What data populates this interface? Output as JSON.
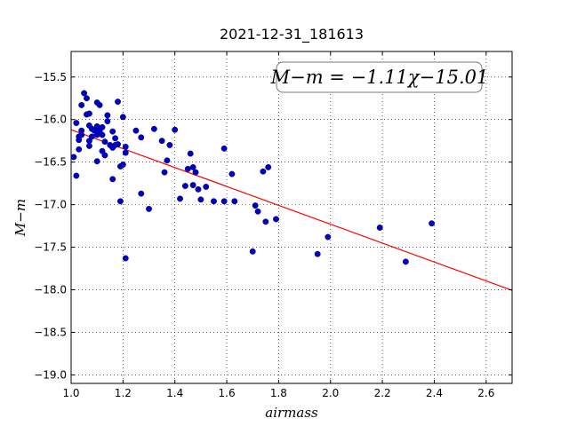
{
  "chart_data": {
    "type": "scatter",
    "title": "2021-12-31_181613",
    "xlabel": "airmass",
    "ylabel": "M−m",
    "xlim": [
      1.0,
      2.7
    ],
    "ylim": [
      -19.1,
      -15.2
    ],
    "xticks": [
      "1.0",
      "1.2",
      "1.4",
      "1.6",
      "1.8",
      "2.0",
      "2.2",
      "2.4",
      "2.6"
    ],
    "yticks": [
      "-15.5",
      "-16.0",
      "-16.5",
      "-17.0",
      "-17.5",
      "-18.0",
      "-18.5",
      "-19.0"
    ],
    "grid": true,
    "annotation": "M−m = −1.11χ−15.01",
    "fit": {
      "slope": -1.11,
      "intercept": -15.01,
      "x_range": [
        1.0,
        2.7
      ],
      "color": "#ff0000"
    },
    "series": [
      {
        "color": "#0000bf",
        "points": [
          [
            1.01,
            -16.44
          ],
          [
            1.02,
            -16.04
          ],
          [
            1.02,
            -16.66
          ],
          [
            1.03,
            -16.2
          ],
          [
            1.03,
            -16.24
          ],
          [
            1.03,
            -16.35
          ],
          [
            1.04,
            -16.13
          ],
          [
            1.04,
            -15.83
          ],
          [
            1.04,
            -16.18
          ],
          [
            1.05,
            -15.69
          ],
          [
            1.06,
            -15.75
          ],
          [
            1.06,
            -15.94
          ],
          [
            1.07,
            -15.93
          ],
          [
            1.07,
            -16.07
          ],
          [
            1.07,
            -16.31
          ],
          [
            1.07,
            -16.25
          ],
          [
            1.08,
            -16.11
          ],
          [
            1.08,
            -16.2
          ],
          [
            1.09,
            -16.13
          ],
          [
            1.1,
            -15.8
          ],
          [
            1.1,
            -16.08
          ],
          [
            1.1,
            -16.18
          ],
          [
            1.1,
            -16.49
          ],
          [
            1.11,
            -15.83
          ],
          [
            1.11,
            -16.13
          ],
          [
            1.12,
            -16.09
          ],
          [
            1.12,
            -16.37
          ],
          [
            1.12,
            -16.18
          ],
          [
            1.13,
            -16.42
          ],
          [
            1.13,
            -16.26
          ],
          [
            1.14,
            -15.95
          ],
          [
            1.14,
            -16.02
          ],
          [
            1.15,
            -16.3
          ],
          [
            1.16,
            -16.7
          ],
          [
            1.16,
            -16.14
          ],
          [
            1.16,
            -16.33
          ],
          [
            1.17,
            -16.22
          ],
          [
            1.17,
            -16.3
          ],
          [
            1.18,
            -15.79
          ],
          [
            1.18,
            -16.29
          ],
          [
            1.19,
            -16.55
          ],
          [
            1.19,
            -16.96
          ],
          [
            1.2,
            -16.53
          ],
          [
            1.2,
            -15.97
          ],
          [
            1.21,
            -16.32
          ],
          [
            1.21,
            -16.39
          ],
          [
            1.21,
            -17.63
          ],
          [
            1.25,
            -16.13
          ],
          [
            1.27,
            -16.87
          ],
          [
            1.27,
            -16.21
          ],
          [
            1.3,
            -17.05
          ],
          [
            1.32,
            -16.11
          ],
          [
            1.35,
            -16.25
          ],
          [
            1.36,
            -16.62
          ],
          [
            1.37,
            -16.48
          ],
          [
            1.38,
            -16.3
          ],
          [
            1.4,
            -16.12
          ],
          [
            1.42,
            -16.93
          ],
          [
            1.44,
            -16.78
          ],
          [
            1.45,
            -16.58
          ],
          [
            1.46,
            -16.4
          ],
          [
            1.47,
            -16.56
          ],
          [
            1.47,
            -16.77
          ],
          [
            1.48,
            -16.62
          ],
          [
            1.49,
            -16.82
          ],
          [
            1.5,
            -16.94
          ],
          [
            1.52,
            -16.79
          ],
          [
            1.55,
            -16.96
          ],
          [
            1.59,
            -16.96
          ],
          [
            1.59,
            -16.34
          ],
          [
            1.62,
            -16.64
          ],
          [
            1.63,
            -16.96
          ],
          [
            1.7,
            -17.55
          ],
          [
            1.71,
            -17.01
          ],
          [
            1.72,
            -17.08
          ],
          [
            1.74,
            -16.61
          ],
          [
            1.75,
            -17.2
          ],
          [
            1.76,
            -16.56
          ],
          [
            1.79,
            -17.17
          ],
          [
            1.95,
            -17.58
          ],
          [
            1.99,
            -17.38
          ],
          [
            2.19,
            -17.27
          ],
          [
            2.29,
            -17.67
          ],
          [
            2.39,
            -17.22
          ]
        ]
      }
    ]
  }
}
